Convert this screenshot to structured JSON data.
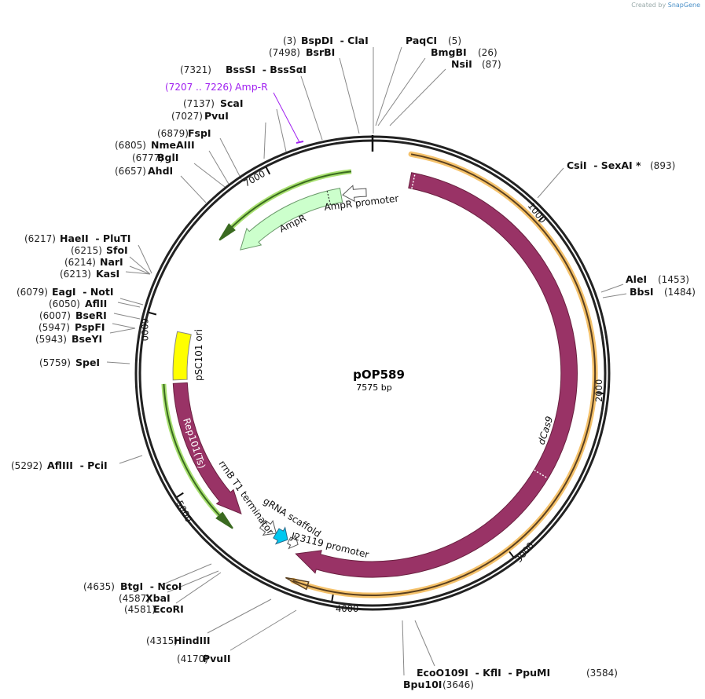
{
  "credit": {
    "prefix": "Created by",
    "brand": "SnapGene"
  },
  "plasmid": {
    "name": "pOP589",
    "length_label": "7575 bp"
  },
  "ticks": [
    "1000",
    "2000",
    "3000",
    "4000",
    "5000",
    "6000",
    "7000"
  ],
  "features": {
    "dcas9": "dCas9",
    "ampr": "AmpR",
    "ampr_promoter": "AmpR promoter",
    "psc101_ori": "pSC101 ori",
    "rep101": "Rep101(Ts)",
    "rrnb": "rrnB T1 terminator",
    "grna": "gRNA scaffold",
    "j23119": "J23119 promoter"
  },
  "primer": {
    "range": "(7207 .. 7226)",
    "name": "Amp-R",
    "color": "#a020f0"
  },
  "sites": [
    {
      "pos": "(3)",
      "name": "BspDI  - ClaI"
    },
    {
      "pos": "(7498)",
      "name": "BsrBI"
    },
    {
      "pos": "(5)",
      "name": "PaqCI"
    },
    {
      "pos": "(26)",
      "name": "BmgBI"
    },
    {
      "pos": "(87)",
      "name": "NsiI"
    },
    {
      "pos": "(7321)",
      "name": "BssSI  - BssSαI"
    },
    {
      "pos": "(7137)",
      "name": "ScaI"
    },
    {
      "pos": "(7027)",
      "name": "PvuI"
    },
    {
      "pos": "(6879)",
      "name": "FspI"
    },
    {
      "pos": "(6805)",
      "name": "NmeAIII"
    },
    {
      "pos": "(6777)",
      "name": "BglI"
    },
    {
      "pos": "(6657)",
      "name": "AhdI"
    },
    {
      "pos": "(6217)",
      "name": "HaeII  - PluTI"
    },
    {
      "pos": "(6215)",
      "name": "SfoI"
    },
    {
      "pos": "(6214)",
      "name": "NarI"
    },
    {
      "pos": "(6213)",
      "name": "KasI"
    },
    {
      "pos": "(6079)",
      "name": "EagI  - NotI"
    },
    {
      "pos": "(6050)",
      "name": "AflII"
    },
    {
      "pos": "(6007)",
      "name": "BseRI"
    },
    {
      "pos": "(5947)",
      "name": "PspFI"
    },
    {
      "pos": "(5943)",
      "name": "BseYI"
    },
    {
      "pos": "(5759)",
      "name": "SpeI"
    },
    {
      "pos": "(5292)",
      "name": "AflIII  - PciI"
    },
    {
      "pos": "(4635)",
      "name": "BtgI  - NcoI"
    },
    {
      "pos": "(4587)",
      "name": "XbaI"
    },
    {
      "pos": "(4581)",
      "name": "EcoRI"
    },
    {
      "pos": "(4315)",
      "name": "HindIII"
    },
    {
      "pos": "(4170)",
      "name": "PvuII"
    },
    {
      "pos": "(3584)",
      "name": "EcoO109I  - KflI  - PpuMI"
    },
    {
      "pos": "(3646)",
      "name": "Bpu10I"
    },
    {
      "pos": "(893)",
      "name": "CsiI  - SexAI *"
    },
    {
      "pos": "(1453)",
      "name": "AleI"
    },
    {
      "pos": "(1484)",
      "name": "BbsI"
    }
  ],
  "colors": {
    "dcas9": "#993366",
    "orange": "#f5c26b",
    "green": "#a8e070",
    "ampr": "#ccffcc",
    "ori": "#ffff00",
    "cyan": "#00c8f0"
  }
}
